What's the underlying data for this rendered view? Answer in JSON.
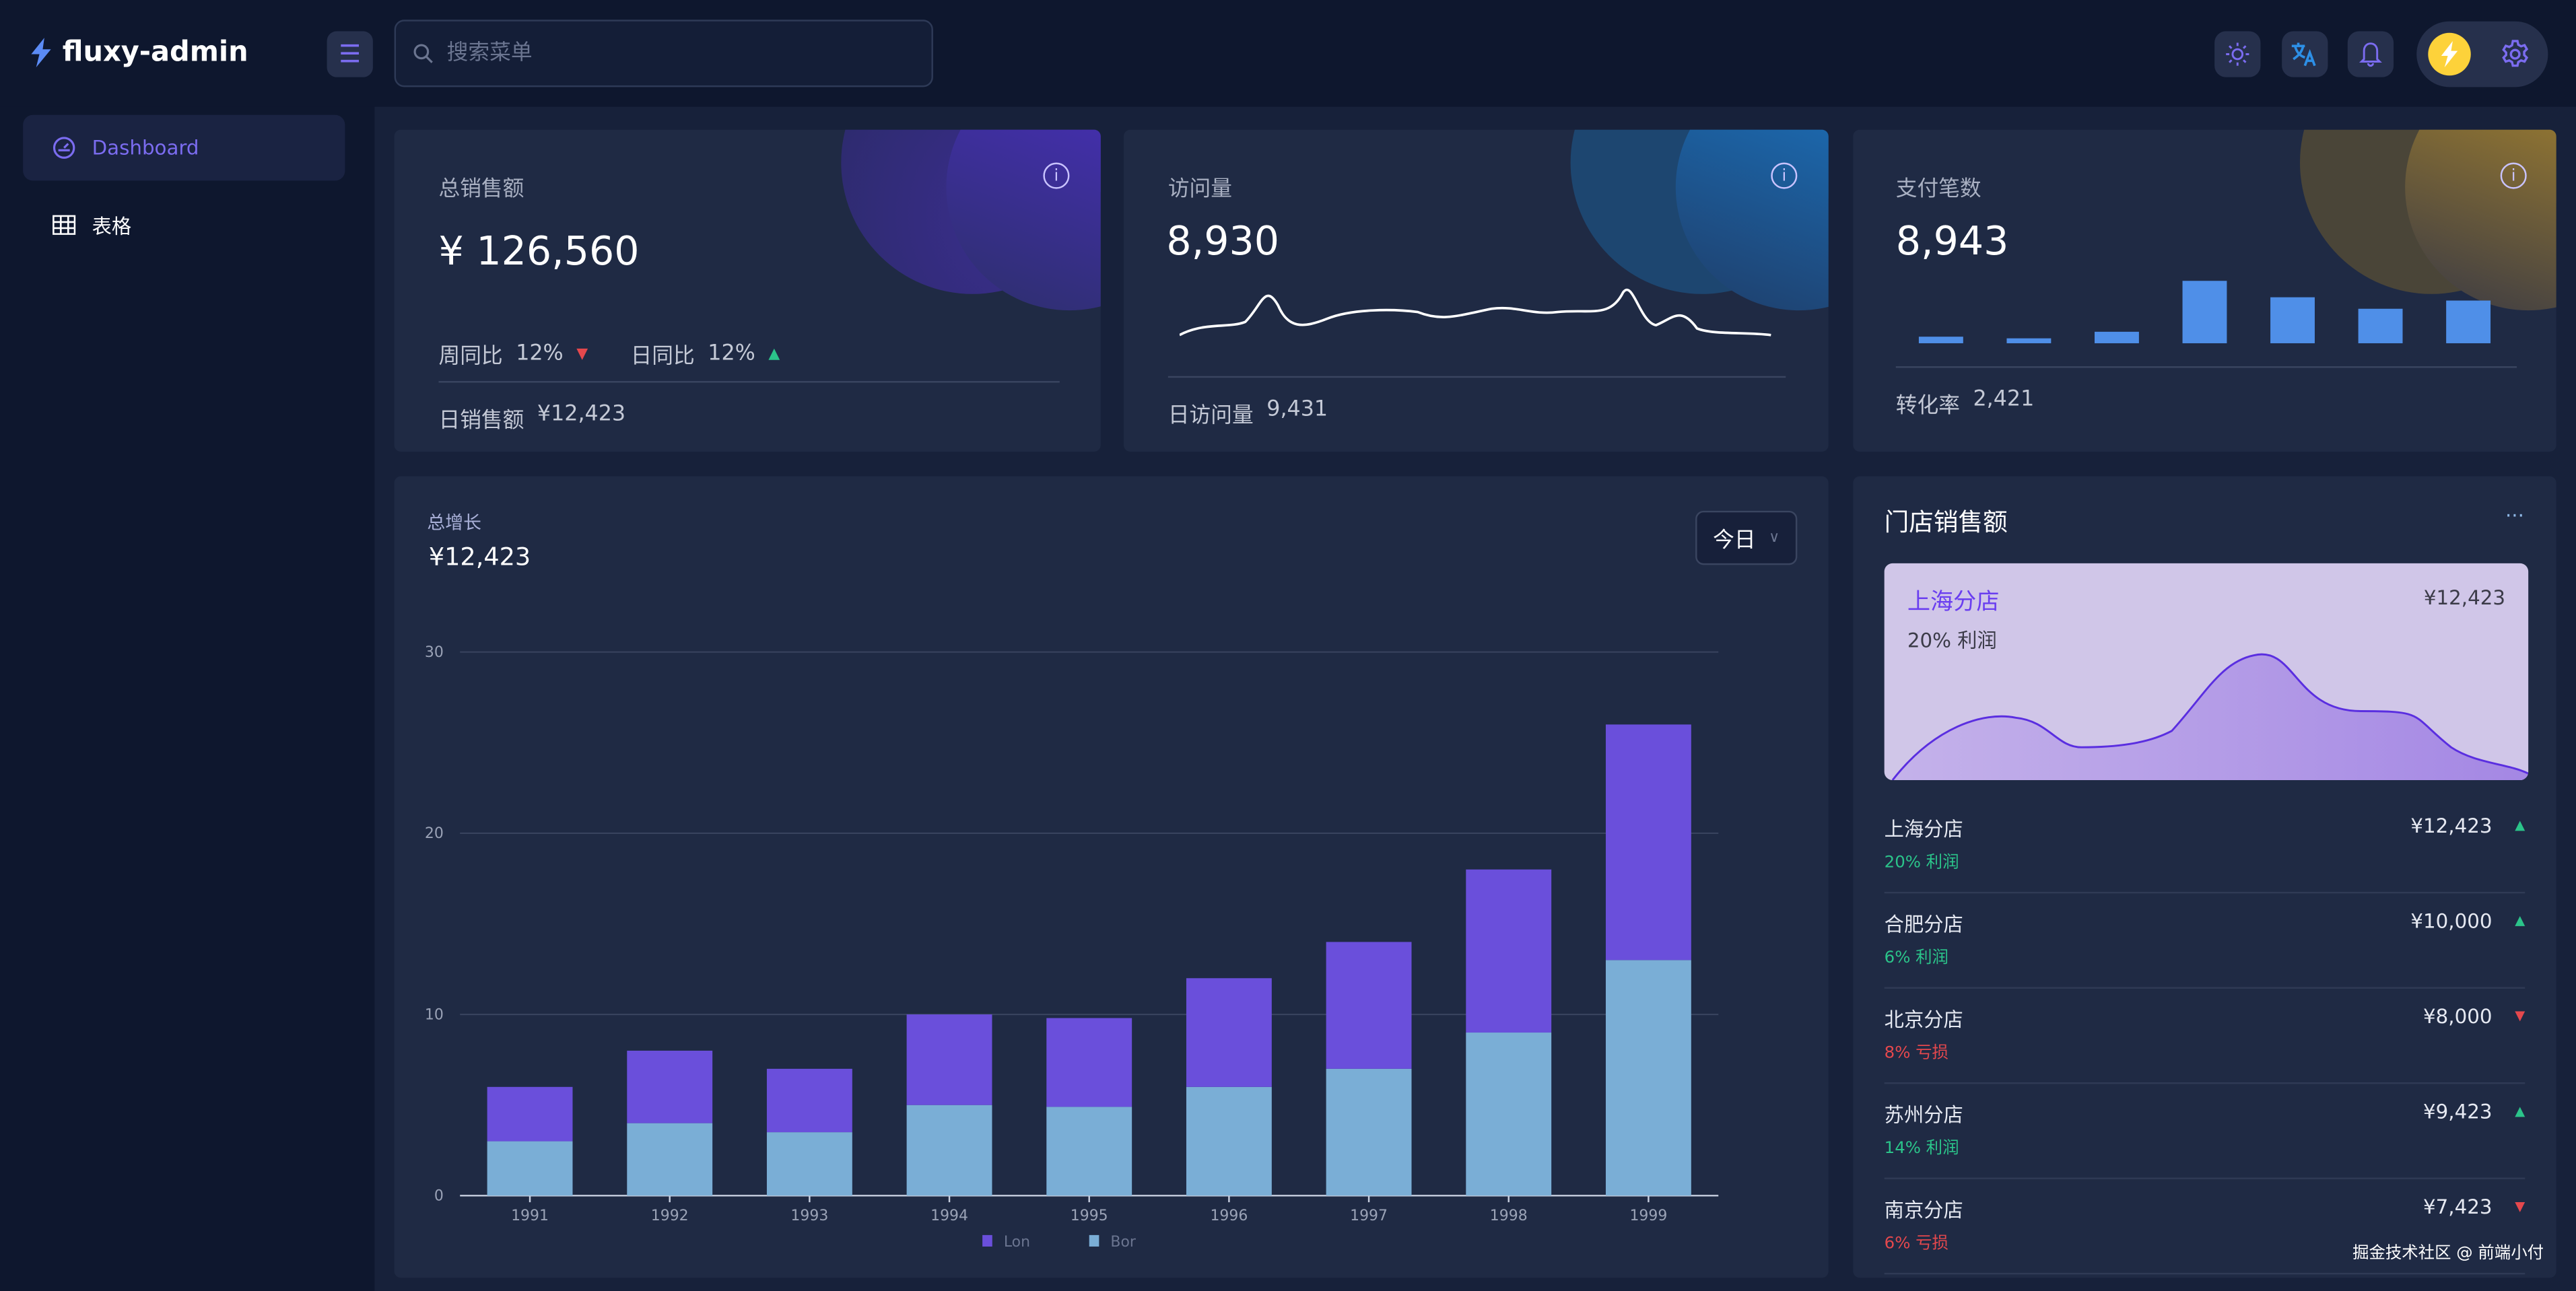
{
  "app": {
    "title": "fluxy-admin"
  },
  "search": {
    "placeholder": "搜索菜单"
  },
  "sidebar": {
    "items": [
      {
        "label": "Dashboard",
        "active": true
      },
      {
        "label": "表格",
        "active": false
      }
    ]
  },
  "header_icons": [
    "sun-icon",
    "translate-icon",
    "bell-icon",
    "lightning-icon",
    "gear-icon"
  ],
  "colors": {
    "accent": "#6b5cf5",
    "up": "#2bc48a",
    "down": "#e5484d",
    "series_lon": "#6a4fdb",
    "series_bor": "#7aaed6"
  },
  "cards": {
    "sales": {
      "title": "总销售额",
      "value": "¥ 126,560",
      "week_label": "周同比",
      "week_value": "12%",
      "week_trend": "down",
      "day_label": "日同比",
      "day_value": "12%",
      "day_trend": "up",
      "footer_label": "日销售额",
      "footer_value": "¥12,423"
    },
    "visits": {
      "title": "访问量",
      "value": "8,930",
      "footer_label": "日访问量",
      "footer_value": "9,431"
    },
    "payments": {
      "title": "支付笔数",
      "value": "8,943",
      "bars": [
        4,
        3,
        7,
        38,
        28,
        21,
        26
      ],
      "footer_label": "转化率",
      "footer_value": "2,421"
    }
  },
  "growth": {
    "title": "总增长",
    "value": "¥12,423",
    "period": "今日"
  },
  "chart_data": {
    "type": "bar",
    "stacked": true,
    "categories": [
      "1991",
      "1992",
      "1993",
      "1994",
      "1995",
      "1996",
      "1997",
      "1998",
      "1999"
    ],
    "series": [
      {
        "name": "Bor",
        "values": [
          3,
          4,
          3.5,
          5,
          4.9,
          6,
          7,
          9,
          13
        ]
      },
      {
        "name": "Lon",
        "values": [
          3,
          4,
          3.5,
          5,
          4.9,
          6,
          7,
          9,
          13
        ]
      }
    ],
    "yticks": [
      0,
      10,
      20,
      30
    ],
    "ylim": [
      0,
      30
    ],
    "grid": true,
    "legend": "bottom"
  },
  "stores": {
    "title": "门店销售额",
    "more": "···",
    "highlight": {
      "name": "上海分店",
      "value": "¥12,423",
      "profit": "20% 利润"
    },
    "items": [
      {
        "name": "上海分店",
        "value": "¥12,423",
        "profit": "20% 利润",
        "trend": "up"
      },
      {
        "name": "合肥分店",
        "value": "¥10,000",
        "profit": "6% 利润",
        "trend": "up"
      },
      {
        "name": "北京分店",
        "value": "¥8,000",
        "profit": "8% 亏损",
        "trend": "down"
      },
      {
        "name": "苏州分店",
        "value": "¥9,423",
        "profit": "14% 利润",
        "trend": "up"
      },
      {
        "name": "南京分店",
        "value": "¥7,423",
        "profit": "6% 亏损",
        "trend": "down"
      }
    ]
  },
  "watermark": "掘金技术社区 @ 前端小付"
}
